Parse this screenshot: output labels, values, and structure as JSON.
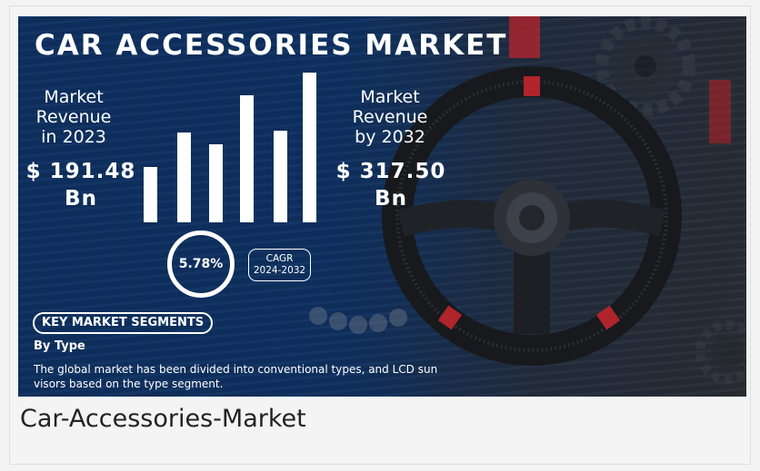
{
  "banner": {
    "title": "CAR ACCESSORIES MARKET",
    "revenue_2023": {
      "label": "Market\nRevenue\nin 2023",
      "value_line1": "$ 191.48",
      "value_line2": "Bn"
    },
    "revenue_2032": {
      "label": "Market\nRevenue\nby 2032",
      "value_line1": "$ 317.50",
      "value_line2": "Bn"
    },
    "cagr": {
      "value": "5.78%",
      "label_line1": "CAGR",
      "label_line2": "2024-2032"
    },
    "segments_heading": "KEY MARKET SEGMENTS",
    "segment_type": "By Type",
    "segment_description": "The global market has been divided into conventional types, and LCD sun visors based on the type segment.",
    "bar_levels": [
      0.37,
      0.6,
      0.52,
      0.85,
      0.61,
      1.0
    ],
    "colors": {
      "banner_blue": "#123766",
      "accent_red": "#b0242c",
      "text_white": "#ffffff"
    },
    "icons": [
      "steering-wheel-icon",
      "gear-icon"
    ]
  },
  "caption": "Car-Accessories-Market"
}
